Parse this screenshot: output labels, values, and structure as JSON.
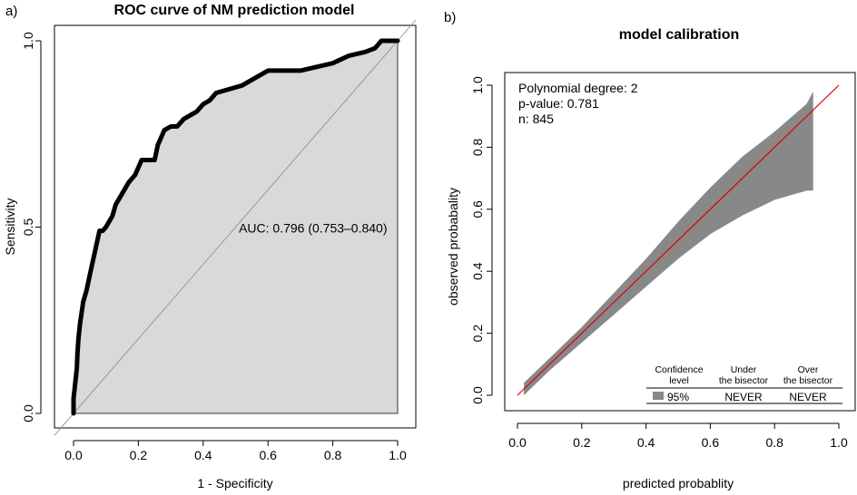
{
  "figure": {
    "panel_a_label": "a)",
    "panel_b_label": "b)"
  },
  "chart_data": [
    {
      "type": "line",
      "title": "ROC curve of NM  prediction model",
      "xlabel": "1 - Specificity",
      "ylabel": "Sensitivity",
      "xlim": [
        0,
        1
      ],
      "ylim": [
        0,
        1
      ],
      "xticks": [
        "0.0",
        "0.2",
        "0.4",
        "0.6",
        "0.8",
        "1.0"
      ],
      "yticks": [
        "0.0",
        "0.5",
        "1.0"
      ],
      "annotation": "AUC: 0.796 (0.753–0.840)",
      "x": [
        0,
        0.0,
        0.005,
        0.01,
        0.012,
        0.015,
        0.02,
        0.025,
        0.03,
        0.04,
        0.05,
        0.06,
        0.07,
        0.08,
        0.09,
        0.1,
        0.12,
        0.13,
        0.15,
        0.17,
        0.19,
        0.2,
        0.21,
        0.22,
        0.25,
        0.26,
        0.28,
        0.3,
        0.32,
        0.34,
        0.36,
        0.38,
        0.4,
        0.42,
        0.44,
        0.48,
        0.52,
        0.56,
        0.6,
        0.65,
        0.7,
        0.75,
        0.8,
        0.85,
        0.9,
        0.93,
        0.95,
        1.0
      ],
      "y": [
        0,
        0.04,
        0.08,
        0.12,
        0.16,
        0.2,
        0.24,
        0.27,
        0.3,
        0.33,
        0.37,
        0.41,
        0.45,
        0.49,
        0.49,
        0.5,
        0.53,
        0.56,
        0.59,
        0.62,
        0.64,
        0.66,
        0.68,
        0.68,
        0.68,
        0.72,
        0.76,
        0.77,
        0.77,
        0.79,
        0.8,
        0.81,
        0.83,
        0.84,
        0.86,
        0.87,
        0.88,
        0.9,
        0.92,
        0.92,
        0.92,
        0.93,
        0.94,
        0.96,
        0.97,
        0.98,
        1.0,
        1.0
      ],
      "fill": "#d9d9d9",
      "line_color": "#000000",
      "reference_line": "diagonal"
    },
    {
      "type": "area",
      "title": "model calibration",
      "xlabel": "predicted probablity",
      "ylabel": "observed probabality",
      "xlim": [
        0,
        1
      ],
      "ylim": [
        0,
        1
      ],
      "xticks": [
        "0.0",
        "0.2",
        "0.4",
        "0.6",
        "0.8",
        "1.0"
      ],
      "yticks": [
        "0.0",
        "0.2",
        "0.4",
        "0.6",
        "0.8",
        "1.0"
      ],
      "x": [
        0.02,
        0.1,
        0.2,
        0.3,
        0.4,
        0.5,
        0.6,
        0.7,
        0.8,
        0.9,
        0.92
      ],
      "lower": [
        0.0,
        0.08,
        0.17,
        0.26,
        0.35,
        0.44,
        0.52,
        0.58,
        0.63,
        0.66,
        0.66
      ],
      "upper": [
        0.04,
        0.12,
        0.22,
        0.33,
        0.44,
        0.56,
        0.67,
        0.77,
        0.85,
        0.94,
        0.98
      ],
      "band_color": "#888888",
      "bisector_color": "#dd0000",
      "annotations": [
        "Polynomial degree: 2",
        "p-value: 0.781",
        "n: 845"
      ],
      "legend": {
        "headers": [
          [
            "Confidence",
            "level"
          ],
          [
            "Under",
            "the bisector"
          ],
          [
            "Over",
            "the bisector"
          ]
        ],
        "values": [
          "95%",
          "NEVER",
          "NEVER"
        ]
      }
    }
  ]
}
